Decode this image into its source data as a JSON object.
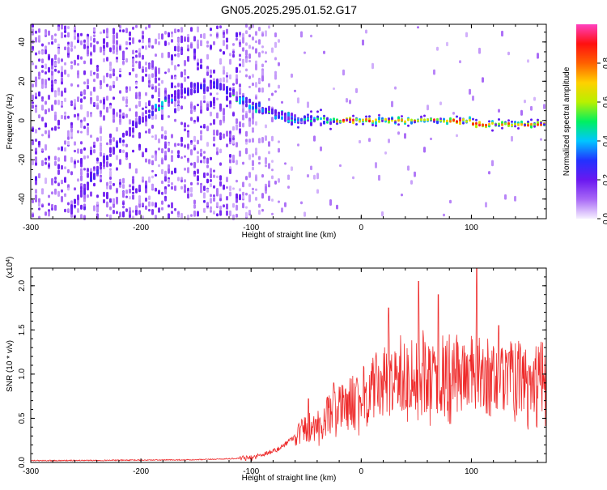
{
  "title": "GN05.2025.295.01.52.G17",
  "chart_data": [
    {
      "type": "heatmap",
      "title": "GN05.2025.295.01.52.G17",
      "xlabel": "Height of straight line (km)",
      "ylabel": "Frequency (Hz)",
      "xlim": [
        -300,
        168
      ],
      "ylim": [
        -50,
        49
      ],
      "x_ticks": [
        -300,
        -200,
        -100,
        0,
        100
      ],
      "y_ticks": [
        -40,
        -20,
        0,
        20,
        40
      ],
      "colorbar": {
        "label": "Normalized spectral amplitude",
        "range": [
          0,
          1
        ],
        "ticks": [
          "0.0",
          "0.2",
          "0.4",
          "0.6",
          "0.8"
        ],
        "colors": [
          "#f6f0ff",
          "#a868f6",
          "#6a18f0",
          "#2232ff",
          "#00c6ff",
          "#00f060",
          "#b8f000",
          "#ffd000",
          "#ff6000",
          "#ff1010",
          "#ff40c0"
        ]
      },
      "features": {
        "stable_tone_hz": 0,
        "arc_peak": {
          "x": -130,
          "y": 18
        },
        "arc_start": {
          "x": -260,
          "y": -42
        },
        "noise_cutoff_x": -75
      }
    },
    {
      "type": "line",
      "xlabel": "Height of straight line (km)",
      "ylabel": "SNR (10 * v/v)",
      "y_multiplier": "(x10^4)",
      "xlim": [
        -300,
        168
      ],
      "ylim": [
        0,
        2.2
      ],
      "x_ticks": [
        -300,
        -200,
        -100,
        0,
        100
      ],
      "y_ticks": [
        "0.0",
        "0.5",
        "1.0",
        "1.5",
        "2.0"
      ],
      "color": "#ee2a2a",
      "trend": [
        {
          "x": -300,
          "y": 0.02
        },
        {
          "x": -150,
          "y": 0.03
        },
        {
          "x": -100,
          "y": 0.05
        },
        {
          "x": -75,
          "y": 0.15
        },
        {
          "x": -55,
          "y": 0.35
        },
        {
          "x": -40,
          "y": 0.45
        },
        {
          "x": -20,
          "y": 0.6
        },
        {
          "x": 0,
          "y": 0.75
        },
        {
          "x": 25,
          "y": 0.95
        },
        {
          "x": 50,
          "y": 1.05
        },
        {
          "x": 75,
          "y": 1.0
        },
        {
          "x": 100,
          "y": 1.0
        },
        {
          "x": 125,
          "y": 0.95
        },
        {
          "x": 150,
          "y": 0.95
        },
        {
          "x": 168,
          "y": 0.95
        }
      ],
      "peaks": [
        {
          "x": -48,
          "y": 0.72
        },
        {
          "x": -25,
          "y": 0.9
        },
        {
          "x": 25,
          "y": 1.75
        },
        {
          "x": 52,
          "y": 2.05
        },
        {
          "x": 70,
          "y": 1.9
        },
        {
          "x": 105,
          "y": 2.2
        },
        {
          "x": 125,
          "y": 1.55
        }
      ]
    }
  ]
}
